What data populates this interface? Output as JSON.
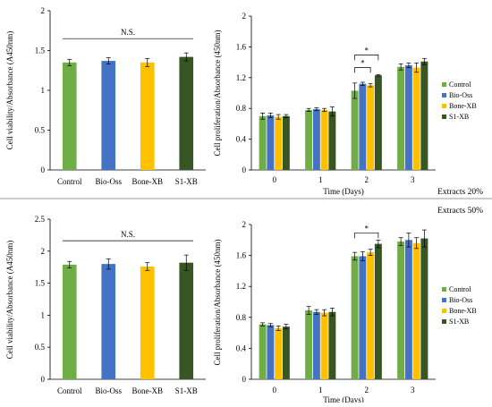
{
  "colors": {
    "control": "#70ad47",
    "bio_oss": "#4472c4",
    "bone_xb": "#ffc000",
    "s1_xb": "#375623"
  },
  "labels": {
    "top_condition": "Extracts 20%",
    "bottom_condition": "Extracts 50%"
  },
  "chart_data": [
    {
      "id": "viability-20",
      "type": "bar",
      "categories": [
        "Control",
        "Bio-Oss",
        "Bone-XB",
        "S1-XB"
      ],
      "values": [
        1.35,
        1.37,
        1.35,
        1.42
      ],
      "errors": [
        0.04,
        0.04,
        0.05,
        0.05
      ],
      "ylabel": "Cell viability/Absorbance (A450nm)",
      "xlabel": "",
      "ylim": [
        0,
        2
      ],
      "yticks": [
        0,
        0.5,
        1,
        1.5,
        2
      ],
      "annotation": "N.S.",
      "grid": false
    },
    {
      "id": "proliferation-20",
      "type": "bar",
      "categories": [
        "0",
        "1",
        "2",
        "3"
      ],
      "series": [
        {
          "name": "Control",
          "values": [
            0.7,
            0.78,
            1.03,
            1.34
          ],
          "errors": [
            0.04,
            0.02,
            0.1,
            0.04
          ]
        },
        {
          "name": "Bio-Oss",
          "values": [
            0.71,
            0.79,
            1.12,
            1.36
          ],
          "errors": [
            0.03,
            0.02,
            0.02,
            0.03
          ]
        },
        {
          "name": "Bone-XB",
          "values": [
            0.69,
            0.78,
            1.1,
            1.33
          ],
          "errors": [
            0.03,
            0.02,
            0.02,
            0.06
          ]
        },
        {
          "name": "S1-XB",
          "values": [
            0.7,
            0.76,
            1.23,
            1.41
          ],
          "errors": [
            0.02,
            0.06,
            0.01,
            0.04
          ]
        }
      ],
      "ylabel": "Cell proliferation/Absorbance (450nm)",
      "xlabel": "Time (Days)",
      "ylim": [
        0,
        2
      ],
      "yticks": [
        0,
        0.4,
        0.8,
        1.2,
        1.6,
        2
      ],
      "significance": [
        {
          "category": "2",
          "from": "Control",
          "to": "Bone-XB",
          "label": "*"
        },
        {
          "category": "2",
          "from": "Control",
          "to": "S1-XB",
          "label": "*"
        }
      ],
      "legend": "right",
      "grid": false
    },
    {
      "id": "viability-50",
      "type": "bar",
      "categories": [
        "Control",
        "Bio-Oss",
        "Bone-XB",
        "S1-XB"
      ],
      "values": [
        1.79,
        1.8,
        1.76,
        1.82
      ],
      "errors": [
        0.05,
        0.08,
        0.06,
        0.12
      ],
      "ylabel": "Cell viability/Absorbance (A450nm)",
      "xlabel": "",
      "ylim": [
        0,
        2.5
      ],
      "yticks": [
        0,
        0.5,
        1,
        1.5,
        2,
        2.5
      ],
      "annotation": "N.S.",
      "grid": false
    },
    {
      "id": "proliferation-50",
      "type": "bar",
      "categories": [
        "0",
        "1",
        "2",
        "3"
      ],
      "series": [
        {
          "name": "Control",
          "values": [
            0.71,
            0.89,
            1.59,
            1.78
          ],
          "errors": [
            0.02,
            0.05,
            0.05,
            0.05
          ]
        },
        {
          "name": "Bio-Oss",
          "values": [
            0.7,
            0.87,
            1.59,
            1.8
          ],
          "errors": [
            0.02,
            0.03,
            0.06,
            0.09
          ]
        },
        {
          "name": "Bone-XB",
          "values": [
            0.66,
            0.86,
            1.64,
            1.76
          ],
          "errors": [
            0.03,
            0.04,
            0.04,
            0.07
          ]
        },
        {
          "name": "S1-XB",
          "values": [
            0.68,
            0.87,
            1.75,
            1.82
          ],
          "errors": [
            0.03,
            0.05,
            0.05,
            0.11
          ]
        }
      ],
      "ylabel": "Cell proliferation/Absorbance (450nm)",
      "xlabel": "Time (Days)",
      "ylim": [
        0,
        2
      ],
      "yticks": [
        0,
        0.4,
        0.8,
        1.2,
        1.6,
        2
      ],
      "significance": [
        {
          "category": "2",
          "from": "Control",
          "to": "S1-XB",
          "label": "*"
        }
      ],
      "legend": "right",
      "grid": false
    }
  ]
}
